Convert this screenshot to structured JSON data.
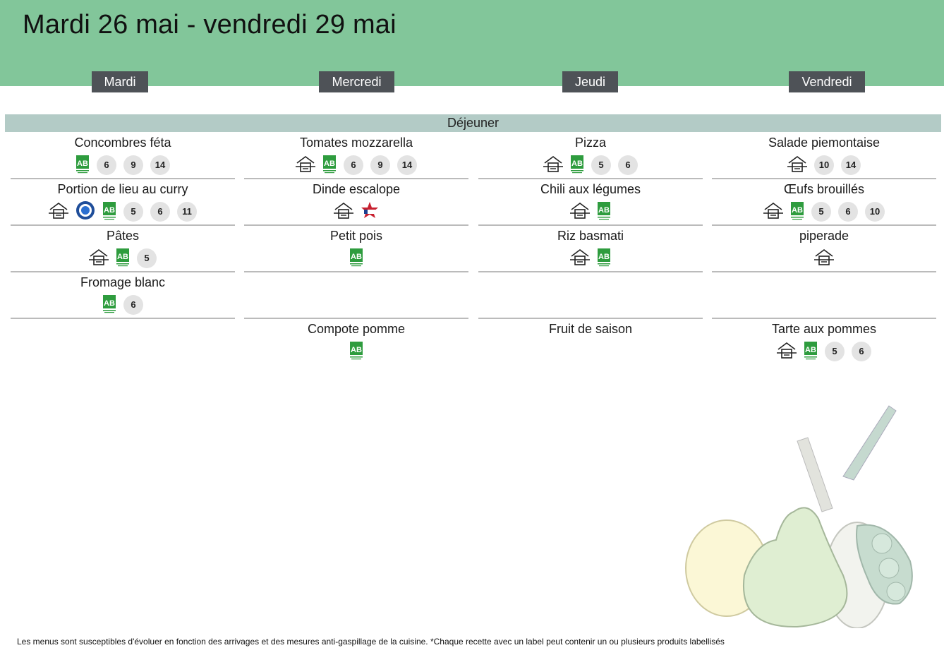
{
  "title": "Mardi 26 mai - vendredi 29 mai",
  "days": [
    "Mardi",
    "Mercredi",
    "Jeudi",
    "Vendredi"
  ],
  "meal": "Déjeuner",
  "columns": [
    {
      "dishes": [
        {
          "name": "Concombres féta",
          "icons": [
            {
              "t": "ab"
            },
            {
              "t": "badge",
              "v": "6"
            },
            {
              "t": "badge",
              "v": "9"
            },
            {
              "t": "badge",
              "v": "14"
            }
          ]
        },
        {
          "name": "Portion de lieu au curry",
          "icons": [
            {
              "t": "house"
            },
            {
              "t": "msc"
            },
            {
              "t": "ab"
            },
            {
              "t": "badge",
              "v": "5"
            },
            {
              "t": "badge",
              "v": "6"
            },
            {
              "t": "badge",
              "v": "11"
            }
          ]
        },
        {
          "name": "Pâtes",
          "icons": [
            {
              "t": "house"
            },
            {
              "t": "ab"
            },
            {
              "t": "badge",
              "v": "5"
            }
          ]
        },
        {
          "name": "Fromage blanc",
          "icons": [
            {
              "t": "ab"
            },
            {
              "t": "badge",
              "v": "6"
            }
          ]
        },
        {
          "name": "",
          "icons": []
        }
      ]
    },
    {
      "dishes": [
        {
          "name": "Tomates mozzarella",
          "icons": [
            {
              "t": "house"
            },
            {
              "t": "ab"
            },
            {
              "t": "badge",
              "v": "6"
            },
            {
              "t": "badge",
              "v": "9"
            },
            {
              "t": "badge",
              "v": "14"
            }
          ]
        },
        {
          "name": "Dinde escalope",
          "icons": [
            {
              "t": "house"
            },
            {
              "t": "vf"
            }
          ]
        },
        {
          "name": "Petit pois",
          "icons": [
            {
              "t": "ab"
            }
          ]
        },
        {
          "name": "",
          "icons": []
        },
        {
          "name": "Compote pomme",
          "icons": [
            {
              "t": "ab"
            }
          ]
        }
      ]
    },
    {
      "dishes": [
        {
          "name": "Pizza",
          "icons": [
            {
              "t": "house"
            },
            {
              "t": "ab"
            },
            {
              "t": "badge",
              "v": "5"
            },
            {
              "t": "badge",
              "v": "6"
            }
          ]
        },
        {
          "name": "Chili aux légumes",
          "icons": [
            {
              "t": "house"
            },
            {
              "t": "ab"
            }
          ]
        },
        {
          "name": "Riz basmati",
          "icons": [
            {
              "t": "house"
            },
            {
              "t": "ab"
            }
          ]
        },
        {
          "name": "",
          "icons": []
        },
        {
          "name": "Fruit de saison",
          "icons": []
        }
      ]
    },
    {
      "dishes": [
        {
          "name": "Salade piemontaise",
          "icons": [
            {
              "t": "house"
            },
            {
              "t": "badge",
              "v": "10"
            },
            {
              "t": "badge",
              "v": "14"
            }
          ]
        },
        {
          "name": "Œufs brouillés",
          "icons": [
            {
              "t": "house"
            },
            {
              "t": "ab"
            },
            {
              "t": "badge",
              "v": "5"
            },
            {
              "t": "badge",
              "v": "6"
            },
            {
              "t": "badge",
              "v": "10"
            }
          ]
        },
        {
          "name": "piperade",
          "icons": [
            {
              "t": "house"
            }
          ]
        },
        {
          "name": "",
          "icons": []
        },
        {
          "name": "Tarte aux pommes",
          "icons": [
            {
              "t": "house"
            },
            {
              "t": "ab"
            },
            {
              "t": "badge",
              "v": "5"
            },
            {
              "t": "badge",
              "v": "6"
            }
          ]
        }
      ]
    }
  ],
  "footer": "Les menus sont susceptibles d'évoluer en fonction des arrivages et des mesures anti-gaspillage de la cuisine. *Chaque recette avec un label peut contenir un ou plusieurs produits labellisés"
}
